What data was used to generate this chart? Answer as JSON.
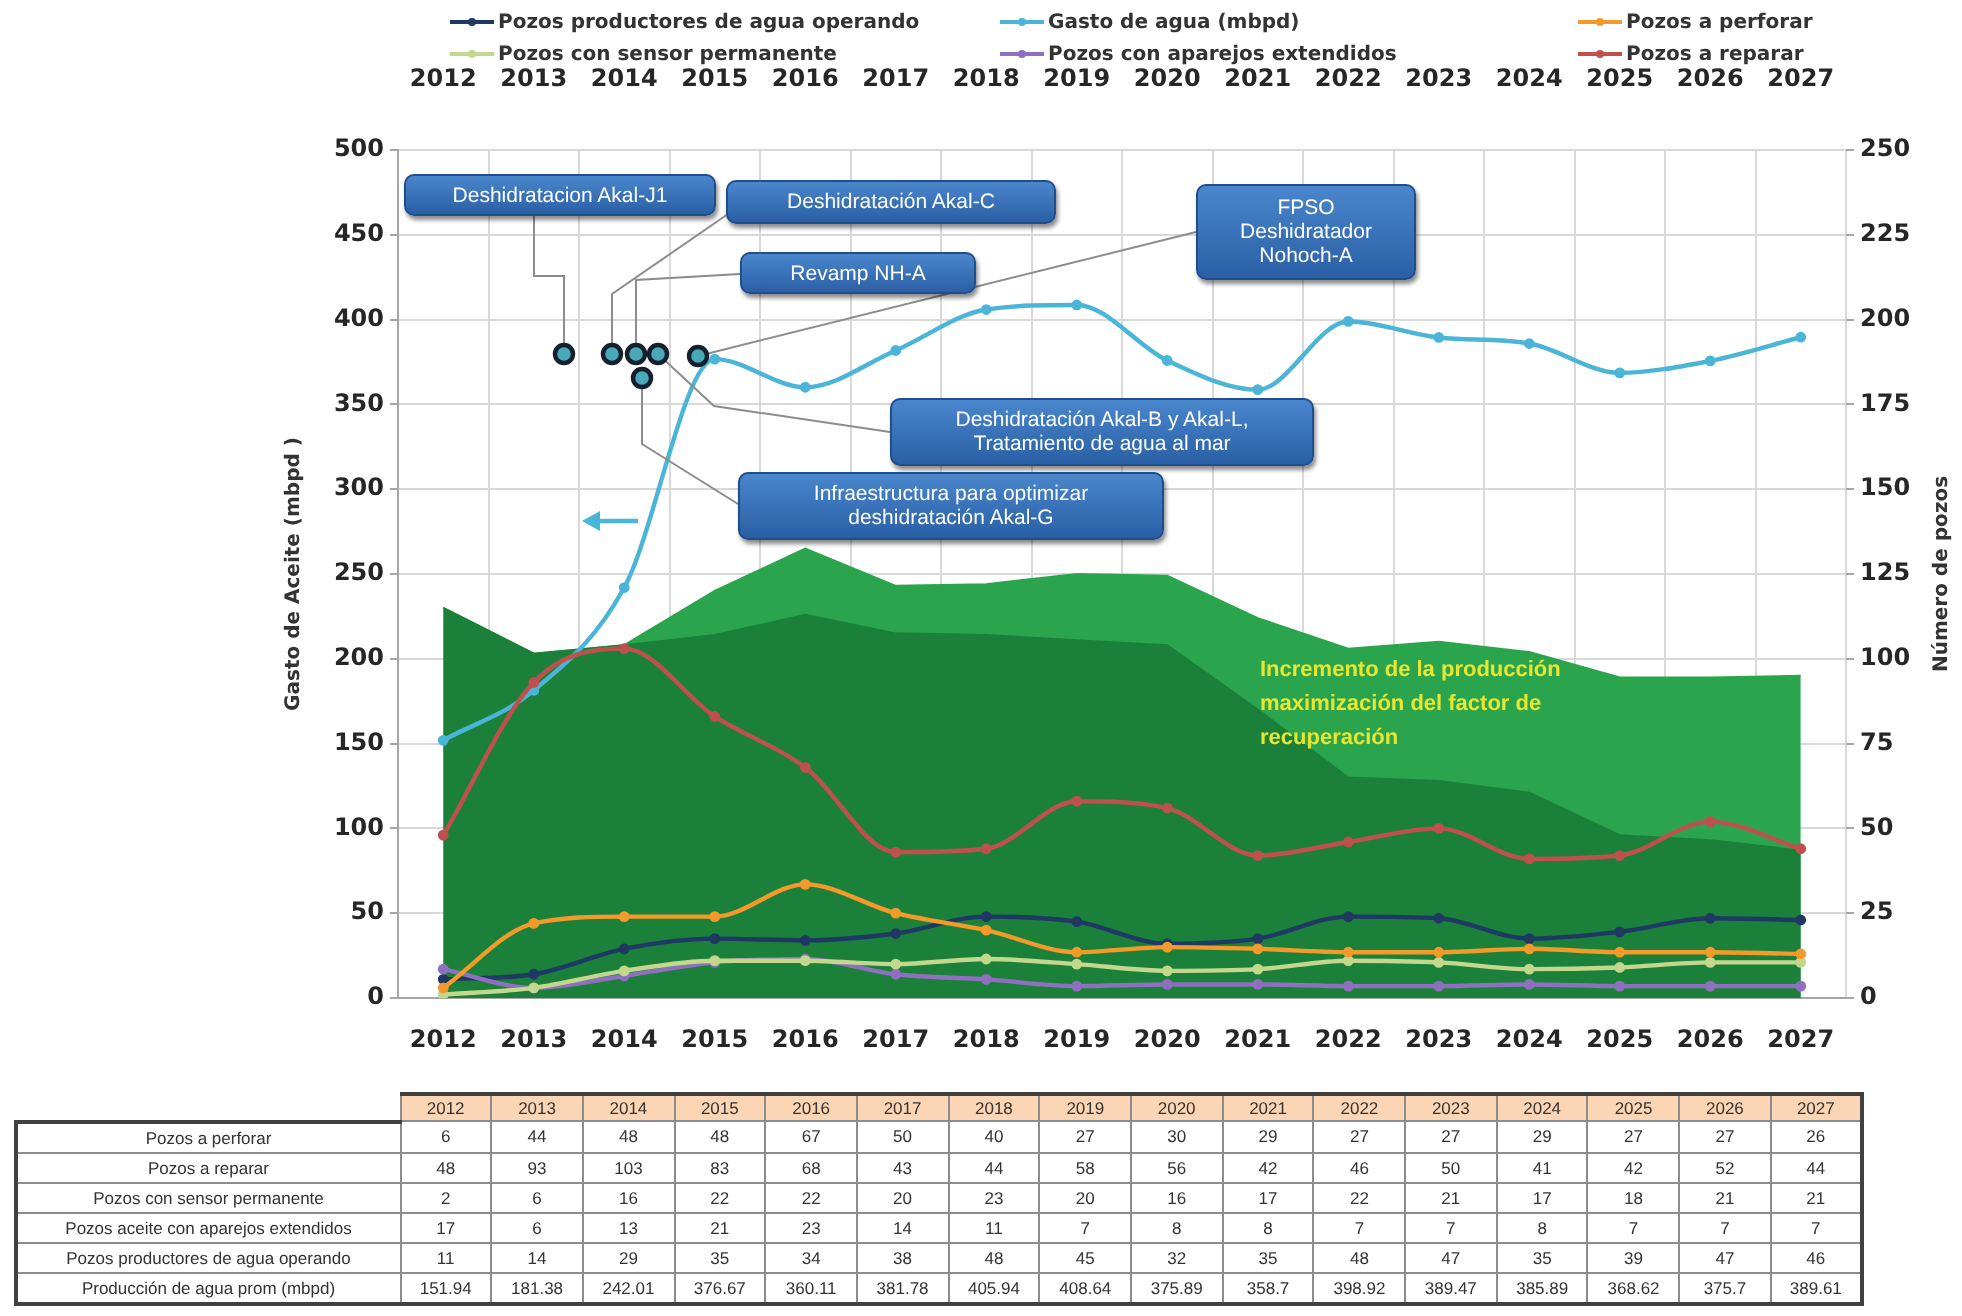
{
  "chart_data": {
    "type": "line",
    "categories": [
      "2012",
      "2013",
      "2014",
      "2015",
      "2016",
      "2017",
      "2018",
      "2019",
      "2020",
      "2021",
      "2022",
      "2023",
      "2024",
      "2025",
      "2026",
      "2027"
    ],
    "ylim": [
      0,
      500
    ],
    "yticks": [
      0,
      50,
      100,
      150,
      200,
      250,
      300,
      350,
      400,
      450,
      500
    ],
    "y2lim": [
      0,
      250
    ],
    "y2ticks": [
      0,
      25,
      50,
      75,
      100,
      125,
      150,
      175,
      200,
      225,
      250
    ],
    "ylabel": "Gasto de Aceite (mbpd )",
    "y2label": "Número de pozos",
    "grid": true,
    "legend": "top",
    "marker": "circle",
    "series": [
      {
        "name": "Pozos a perforar",
        "color": "#f39a2a",
        "values": [
          6,
          44,
          48,
          48,
          67,
          50,
          40,
          27,
          30,
          29,
          27,
          27,
          29,
          27,
          27,
          26
        ],
        "value_labels": [
          "6",
          "44",
          "48",
          "48",
          "67",
          "50",
          "40",
          "27",
          "30",
          "29",
          "27",
          "27",
          "29",
          "27",
          "27",
          "26"
        ]
      },
      {
        "name": "Pozos a reparar",
        "color": "#c0504d",
        "axis": "y2",
        "values": [
          48,
          93,
          103,
          83,
          68,
          43,
          44,
          58,
          56,
          42,
          46,
          50,
          41,
          42,
          52,
          44
        ],
        "value_labels": [
          "48",
          "93",
          "103",
          "83",
          "68",
          "43",
          "44",
          "58",
          "56",
          "42",
          "46",
          "50",
          "41",
          "42",
          "52",
          "44"
        ]
      },
      {
        "name": "Pozos con sensor permanente",
        "color": "#c3d88c",
        "values": [
          2,
          6,
          16,
          22,
          22,
          20,
          23,
          20,
          16,
          17,
          22,
          21,
          17,
          18,
          21,
          21
        ],
        "value_labels": [
          "2",
          "6",
          "16",
          "22",
          "22",
          "20",
          "23",
          "20",
          "16",
          "17",
          "22",
          "21",
          "17",
          "18",
          "21",
          "21"
        ]
      },
      {
        "name": "Pozos con aparejos extendidos",
        "color": "#8f6fbf",
        "values": [
          17,
          6,
          13,
          21,
          23,
          14,
          11,
          7,
          8,
          8,
          7,
          7,
          8,
          7,
          7,
          7
        ],
        "value_labels": [
          "17",
          "6",
          "13",
          "21",
          "23",
          "14",
          "11",
          "7",
          "8",
          "8",
          "7",
          "7",
          "8",
          "7",
          "7",
          "7"
        ]
      },
      {
        "name": "Pozos productores de agua operando",
        "color": "#1f3864",
        "values": [
          11,
          14,
          29,
          35,
          34,
          38,
          48,
          45,
          32,
          35,
          48,
          47,
          35,
          39,
          47,
          46
        ],
        "value_labels": [
          "11",
          "14",
          "29",
          "35",
          "34",
          "38",
          "48",
          "45",
          "32",
          "35",
          "48",
          "47",
          "35",
          "39",
          "47",
          "46"
        ]
      },
      {
        "name": "Gasto de agua (mbpd)",
        "color": "#4bb5d8",
        "values": [
          151.94,
          181.38,
          242.01,
          376.67,
          360.11,
          381.78,
          405.94,
          408.64,
          375.89,
          358.7,
          398.92,
          389.47,
          385.89,
          368.62,
          375.7,
          389.61
        ],
        "value_labels": [
          "151.94",
          "181.38",
          "242.01",
          "376.67",
          "360.11",
          "381.78",
          "405.94",
          "408.64",
          "375.89",
          "358.7",
          "398.92",
          "389.47",
          "385.89",
          "368.62",
          "375.7",
          "389.61"
        ]
      },
      {
        "type": "area",
        "color": "#2ba54d",
        "marker": "none",
        "values": [
          230,
          203,
          208,
          240,
          265,
          243,
          244,
          250,
          249,
          224,
          206,
          210,
          204,
          189,
          189,
          190
        ]
      },
      {
        "type": "area",
        "color": "#1b803a",
        "marker": "none",
        "values": [
          230,
          203,
          208,
          214,
          226,
          215,
          214,
          211,
          208,
          170,
          130,
          128,
          121,
          96,
          93,
          87
        ]
      }
    ],
    "annotations": [
      "Pozos a perforar",
      "Pozos a reparar",
      "Pozos con sensor permanente",
      "Pozos aceite con aparejos extendidos",
      "Pozos productores de agua operando",
      "Producción de agua prom (mbpd)",
      "Incremento de la producción maximización del factor de recuperación",
      "Deshidratacion Akal-J1",
      "Deshidratación Akal-C",
      "Revamp NH-A",
      "Deshidratación Akal-B y Akal-L, Tratamiento de agua al mar",
      "FPSO Deshidratador Nohoch-A",
      "Infraestructura para optimizar deshidratación Akal-G"
    ]
  }
}
